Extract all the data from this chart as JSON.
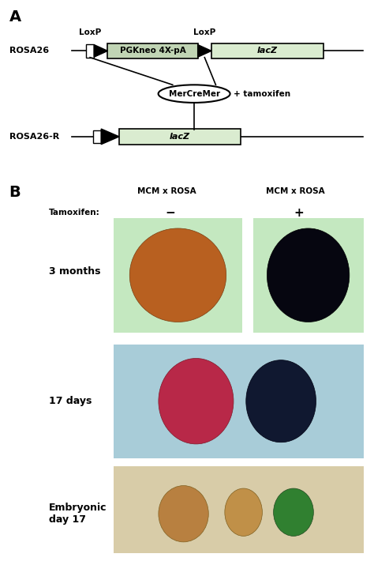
{
  "fig_width": 4.74,
  "fig_height": 7.15,
  "dpi": 100,
  "bg_color": "#ffffff",
  "panel_A_label": "A",
  "panel_B_label": "B",
  "rosa26_label": "ROSA26",
  "rosa26r_label": "ROSA26-R",
  "loxp1_label": "LoxP",
  "loxp2_label": "LoxP",
  "pgkneo_label": "PGKneo 4X-pA",
  "lacz_label1": "lacZ",
  "lacz_label2": "lacZ",
  "mercremer_label": "MerCreMer",
  "tamoxifen_label": "+ tamoxifen",
  "tamoxifen_header": "Tamoxifen:",
  "mcm_rosa_neg_label": "MCM x ROSA",
  "mcm_rosa_pos_label": "MCM x ROSA",
  "minus_label": "−",
  "plus_label": "+",
  "months3_label": "3 months",
  "days17_label": "17 days",
  "embryonic_label": "Embryonic\nday 17",
  "box_color": "#daecd0",
  "box_color_dark": "#c0d4b4",
  "line_color": "#000000",
  "text_color": "#000000",
  "photo_bg_green": "#c4e8c0",
  "photo_bg_blue": "#a8ccd8",
  "photo_bg_cream": "#d8cca8",
  "heart_orange": "#b86020",
  "heart_black": "#060610",
  "heart_pink": "#b82848",
  "heart_darkblue": "#101830",
  "heart_tan1": "#b88040",
  "heart_tan2": "#c09048",
  "heart_green": "#308030"
}
